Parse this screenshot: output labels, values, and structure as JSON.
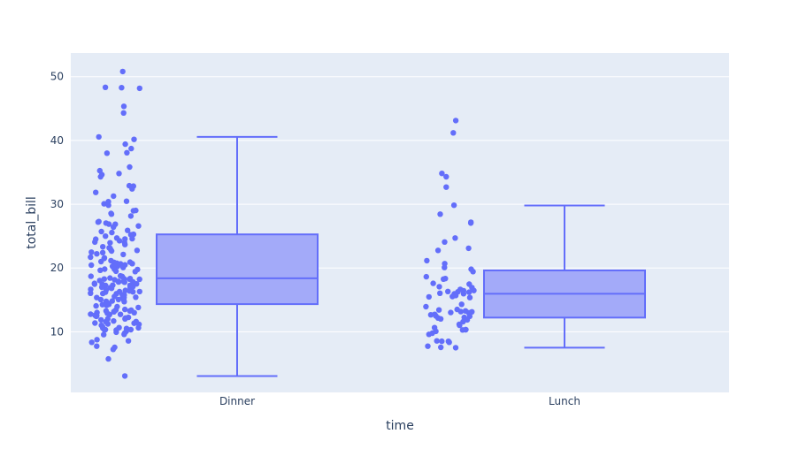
{
  "chart_data": {
    "type": "box",
    "title": "",
    "xlabel": "time",
    "ylabel": "total_bill",
    "categories": [
      "Dinner",
      "Lunch"
    ],
    "ylim": [
      0.5,
      53.7
    ],
    "yticks": [
      10,
      20,
      30,
      40,
      50
    ],
    "grid": true,
    "points": "all",
    "colors": {
      "background": "#ffffff",
      "plot_background": "#e5ecf6",
      "grid": "#ffffff",
      "box_line": "#636efa",
      "box_fill": "#a3aaf9",
      "marker": "#636efa",
      "text": "#2a3f5f"
    },
    "boxes": [
      {
        "category": "Dinner",
        "lowerfence": 3.07,
        "q1": 14.34,
        "median": 18.39,
        "q3": 25.27,
        "upperfence": 40.55
      },
      {
        "category": "Lunch",
        "lowerfence": 7.51,
        "q1": 12.23,
        "median": 15.97,
        "q3": 19.62,
        "upperfence": 29.8
      }
    ],
    "series": [
      {
        "category": "Dinner",
        "y": [
          50.81,
          48.33,
          48.27,
          48.17,
          45.35,
          44.3,
          40.55,
          40.17,
          39.42,
          38.73,
          38.07,
          38.01,
          35.83,
          35.26,
          34.81,
          34.63,
          34.3,
          32.9,
          32.83,
          32.4,
          31.85,
          31.27,
          30.46,
          30.4,
          30.06,
          29.85,
          29.03,
          28.97,
          28.55,
          28.44,
          28.15,
          27.28,
          27.2,
          27.05,
          26.88,
          26.86,
          26.59,
          26.41,
          25.89,
          25.71,
          25.56,
          25.29,
          25.21,
          25.0,
          24.71,
          24.59,
          24.55,
          24.52,
          24.27,
          24.06,
          24.01,
          23.95,
          23.68,
          23.33,
          23.17,
          23.1,
          22.82,
          22.76,
          22.67,
          22.49,
          22.42,
          22.23,
          22.12,
          21.7,
          21.58,
          21.5,
          21.16,
          21.01,
          20.92,
          20.9,
          20.76,
          20.69,
          20.65,
          20.49,
          20.45,
          20.29,
          20.27,
          20.23,
          20.08,
          19.82,
          19.81,
          19.77,
          19.65,
          19.49,
          19.44,
          18.78,
          18.71,
          18.69,
          18.64,
          18.43,
          18.35,
          18.29,
          18.28,
          18.26,
          18.24,
          18.15,
          18.04,
          17.92,
          17.89,
          17.82,
          17.81,
          17.78,
          17.59,
          17.51,
          17.47,
          17.46,
          17.31,
          17.29,
          17.26,
          17.07,
          16.99,
          16.97,
          16.93,
          16.82,
          16.66,
          16.58,
          16.49,
          16.45,
          16.4,
          16.31,
          16.29,
          16.27,
          16.21,
          16.04,
          16.0,
          15.98,
          15.81,
          15.77,
          15.69,
          15.53,
          15.48,
          15.42,
          15.38,
          15.36,
          15.06,
          15.04,
          15.01,
          14.83,
          14.78,
          14.73,
          14.48,
          14.31,
          14.26,
          14.15,
          14.07,
          13.94,
          13.81,
          13.51,
          13.42,
          13.39,
          13.28,
          13.27,
          13.16,
          13.13,
          13.03,
          13.0,
          12.9,
          12.76,
          12.74,
          12.69,
          12.6,
          12.54,
          12.46,
          12.43,
          12.26,
          12.16,
          12.03,
          12.02,
          11.87,
          11.69,
          11.61,
          11.59,
          11.38,
          11.35,
          11.24,
          11.17,
          11.02,
          10.77,
          10.65,
          10.63,
          10.59,
          10.51,
          10.34,
          10.33,
          10.29,
          10.27,
          10.07,
          9.94,
          9.78,
          9.6,
          9.55,
          8.77,
          8.58,
          8.35,
          7.74,
          7.56,
          7.25,
          5.75,
          3.07
        ]
      },
      {
        "category": "Lunch",
        "y": [
          43.11,
          41.19,
          34.83,
          34.3,
          32.68,
          29.85,
          28.44,
          27.18,
          27.05,
          24.71,
          24.08,
          23.1,
          22.76,
          21.16,
          20.69,
          20.08,
          19.81,
          19.44,
          18.64,
          18.35,
          18.26,
          17.59,
          17.47,
          17.07,
          16.93,
          16.66,
          16.47,
          16.45,
          16.32,
          16.27,
          16.21,
          16.04,
          15.98,
          15.95,
          15.69,
          15.53,
          15.48,
          15.36,
          14.31,
          13.94,
          13.51,
          13.42,
          13.28,
          13.16,
          13.13,
          13.03,
          13.0,
          12.74,
          12.66,
          12.48,
          12.43,
          12.26,
          12.16,
          12.03,
          11.87,
          11.59,
          11.17,
          11.02,
          10.65,
          10.34,
          10.33,
          10.29,
          10.07,
          9.78,
          9.6,
          8.58,
          8.52,
          8.51,
          8.35,
          7.74,
          7.56,
          7.51
        ]
      }
    ]
  }
}
